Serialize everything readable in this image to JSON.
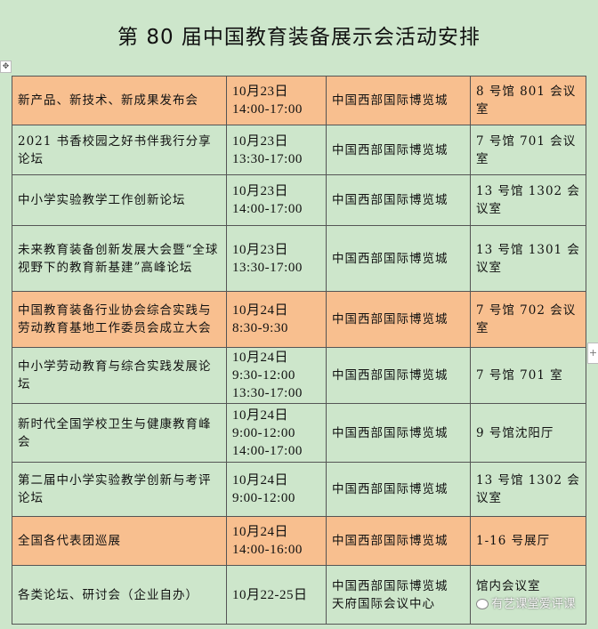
{
  "title": "第 80 届中国教育装备展示会活动安排",
  "colors": {
    "background": "#cde6cb",
    "highlight": "#f8bf8f"
  },
  "watermark": "有艺课堂爱评课",
  "rows": [
    {
      "event": "新产品、新技术、新成果发布会",
      "time": "10月23日\n14:00-17:00",
      "venue": "中国西部国际博览城",
      "room": "8 号馆 801 会议室",
      "highlight": true
    },
    {
      "event": "2021 书香校园之好书伴我行分享论坛",
      "time": "10月23日\n13:30-17:00",
      "venue": "中国西部国际博览城",
      "room": "7 号馆 701 会议室",
      "highlight": false
    },
    {
      "event": "中小学实验教学工作创新论坛",
      "time": "10月23日\n14:00-17:00",
      "venue": "中国西部国际博览城",
      "room": "13 号馆 1302 会议室",
      "highlight": false
    },
    {
      "event": "未来教育装备创新发展大会暨“全球视野下的教育新基建”高峰论坛",
      "time": "10月23日\n13:30-17:00",
      "venue": "中国西部国际博览城",
      "room": "13 号馆 1301 会议室",
      "highlight": false
    },
    {
      "event": "中国教育装备行业协会综合实践与劳动教育基地工作委员会成立大会",
      "time": "10月24日\n8:30-9:30",
      "venue": "中国西部国际博览城",
      "room": "7 号馆 702 会议室",
      "highlight": true
    },
    {
      "event": "中小学劳动教育与综合实践发展论坛",
      "time": "10月24日\n9:30-12:00\n13:30-17:00",
      "venue": "中国西部国际博览城",
      "room": "7 号馆 701 室",
      "highlight": false
    },
    {
      "event": "新时代全国学校卫生与健康教育峰会",
      "time": "10月24日\n9:00-12:00\n14:00-17:00",
      "venue": "中国西部国际博览城",
      "room": "9 号馆沈阳厅",
      "highlight": false
    },
    {
      "event": "第二届中小学实验教学创新与考评论坛",
      "time": "10月24日\n9:00-12:00",
      "venue": "中国西部国际博览城",
      "room": "13 号馆 1302 会议室",
      "highlight": false
    },
    {
      "event": "全国各代表团巡展",
      "time": "10月24日\n14:00-16:00",
      "venue": "中国西部国际博览城",
      "room": "1-16 号展厅",
      "highlight": true
    },
    {
      "event": "各类论坛、研讨会（企业自办）",
      "time": "10月22-25日",
      "venue": "中国西部国际博览城\n天府国际会议中心",
      "room": "馆内会议室",
      "highlight": false
    }
  ]
}
